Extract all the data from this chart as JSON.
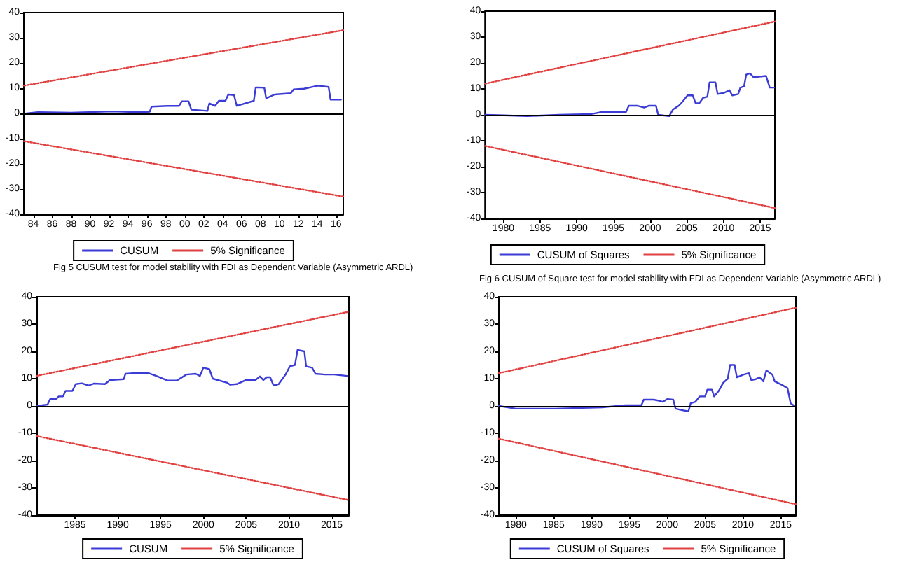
{
  "chart_data": [
    {
      "type": "line",
      "xlim": [
        1983,
        2016.75
      ],
      "ylim": [
        -40,
        40
      ],
      "xticks": [
        {
          "value": 1984,
          "label": "84"
        },
        {
          "value": 1986,
          "label": "86"
        },
        {
          "value": 1988,
          "label": "88"
        },
        {
          "value": 1990,
          "label": "90"
        },
        {
          "value": 1992,
          "label": "92"
        },
        {
          "value": 1994,
          "label": "94"
        },
        {
          "value": 1996,
          "label": "96"
        },
        {
          "value": 1998,
          "label": "98"
        },
        {
          "value": 2000,
          "label": "00"
        },
        {
          "value": 2002,
          "label": "02"
        },
        {
          "value": 2004,
          "label": "04"
        },
        {
          "value": 2006,
          "label": "06"
        },
        {
          "value": 2008,
          "label": "08"
        },
        {
          "value": 2010,
          "label": "10"
        },
        {
          "value": 2012,
          "label": "12"
        },
        {
          "value": 2014,
          "label": "14"
        },
        {
          "value": 2016,
          "label": "16"
        }
      ],
      "yticks": [
        -40,
        -30,
        -20,
        -10,
        0,
        10,
        20,
        30,
        40
      ],
      "grid": false,
      "legend": "bottom",
      "marker": "none",
      "ref_lines": [
        {
          "axis": "y",
          "value": 0,
          "color": "#000000"
        }
      ],
      "annotations": [
        "Fig 5 CUSUM test for model stability with FDI as Dependent Variable (Asymmetric ARDL)"
      ],
      "series": [
        {
          "name": "CUSUM",
          "color": "#3b3bd6",
          "line_style": "solid",
          "x": [
            1983.3,
            1984.5,
            1988,
            1992.4,
            1995.3,
            1996.3,
            1996.5,
            1998.2,
            1999.4,
            1999.7,
            2000.4,
            2000.7,
            2002.4,
            2002.6,
            2003.2,
            2003.6,
            2004.3,
            2004.6,
            2005.2,
            2005.5,
            2007.3,
            2007.5,
            2008.4,
            2008.6,
            2009.5,
            2011.2,
            2011.5,
            2012.6,
            2014.1,
            2015.2,
            2015.4,
            2016.5
          ],
          "values": [
            0,
            0.5,
            0.3,
            0.8,
            0.5,
            0.7,
            2.7,
            3,
            3,
            4.8,
            4.8,
            1.5,
            1,
            4,
            3,
            5,
            5,
            7.5,
            7.3,
            3,
            5,
            10.3,
            10.2,
            6,
            7.5,
            8,
            9.5,
            9.8,
            11,
            10.5,
            5.5,
            5.5
          ]
        },
        {
          "name": "5% Significance",
          "color": "#e04040",
          "line_style": "dotted",
          "x": [
            1983,
            2016.75
          ],
          "values": [
            11,
            33
          ]
        },
        {
          "color": "#e04040",
          "line_style": "dotted",
          "x": [
            1983,
            2016.75
          ],
          "values": [
            -11,
            -33
          ]
        }
      ]
    },
    {
      "type": "line",
      "xlim": [
        1977.5,
        2017
      ],
      "ylim": [
        -40,
        40
      ],
      "xticks": [
        1980,
        1985,
        1990,
        1995,
        2000,
        2005,
        2010,
        2015
      ],
      "yticks": [
        -40,
        -30,
        -20,
        -10,
        0,
        10,
        20,
        30,
        40
      ],
      "grid": false,
      "legend": "bottom",
      "marker": "none",
      "ref_lines": [
        {
          "axis": "y",
          "value": 0,
          "color": "#000000"
        }
      ],
      "annotations": [
        "Fig 6 CUSUM of Square test for model stability with  FDI as Dependent Variable (Asymmetric ARDL)"
      ],
      "series": [
        {
          "name": "CUSUM of Squares",
          "color": "#3b3bd6",
          "line_style": "solid",
          "x": [
            1977.5,
            1980.1,
            1983.3,
            1987.6,
            1992,
            1993.3,
            1995.8,
            1996.7,
            1997.1,
            1998.3,
            1999.2,
            1999.8,
            2000.8,
            2001.1,
            2002.6,
            2003.1,
            2003.9,
            2004.4,
            2005.1,
            2005.8,
            2006.2,
            2006.7,
            2007.2,
            2007.8,
            2008.1,
            2008.9,
            2009.2,
            2010.1,
            2010.8,
            2011.2,
            2012,
            2012.3,
            2012.8,
            2013.1,
            2013.6,
            2014.1,
            2015.8,
            2016.3,
            2016.9
          ],
          "values": [
            0,
            -0.2,
            -0.5,
            0,
            0.3,
            1,
            1,
            1,
            3.5,
            3.5,
            2.8,
            3.5,
            3.5,
            0,
            -0.5,
            2,
            3.5,
            5,
            7.5,
            7.5,
            4.5,
            4.5,
            6.5,
            7,
            12.5,
            12.5,
            8,
            8.5,
            9.5,
            7.5,
            8,
            10.5,
            11,
            15.5,
            16,
            14.5,
            15,
            10.5,
            10.5
          ]
        },
        {
          "name": "5% Significance",
          "color": "#e04040",
          "line_style": "dotted",
          "x": [
            1977.5,
            2017
          ],
          "values": [
            12,
            36
          ]
        },
        {
          "color": "#e04040",
          "line_style": "dotted",
          "x": [
            1977.5,
            2017
          ],
          "values": [
            -12,
            -36
          ]
        }
      ]
    },
    {
      "type": "line",
      "xlim": [
        1980.5,
        2017
      ],
      "ylim": [
        -40,
        40
      ],
      "xticks": [
        1985,
        1990,
        1995,
        2000,
        2005,
        2010,
        2015
      ],
      "yticks": [
        -40,
        -30,
        -20,
        -10,
        0,
        10,
        20,
        30,
        40
      ],
      "grid": false,
      "legend": "bottom",
      "marker": "none",
      "ref_lines": [
        {
          "axis": "y",
          "value": 0,
          "color": "#000000"
        }
      ],
      "series": [
        {
          "name": "CUSUM",
          "color": "#3b3bd6",
          "line_style": "solid",
          "x": [
            1980.6,
            1981.8,
            1982.1,
            1982.8,
            1983.1,
            1983.6,
            1983.9,
            1984.7,
            1985.1,
            1985.8,
            1986.6,
            1987.2,
            1988.5,
            1989.1,
            1990.7,
            1990.9,
            1991.8,
            1993.6,
            1994.5,
            1995.8,
            1996.9,
            1998,
            1999.1,
            1999.6,
            2000,
            2000.7,
            2001.1,
            2002.8,
            2003.1,
            2003.9,
            2005,
            2006.1,
            2006.6,
            2007,
            2007.4,
            2007.8,
            2008.2,
            2008.8,
            2009.6,
            2010.1,
            2010.7,
            2011,
            2011.8,
            2012,
            2012.7,
            2013.1,
            2014.2,
            2015.3,
            2016.8
          ],
          "values": [
            0,
            0.5,
            2.5,
            2.5,
            3.5,
            3.5,
            5.5,
            5.5,
            8,
            8.3,
            7.5,
            8.2,
            8,
            9.5,
            9.8,
            11.8,
            12,
            12,
            11,
            9.3,
            9.3,
            11.5,
            11.8,
            11,
            14,
            13.5,
            10,
            8.5,
            7.8,
            8,
            9.5,
            9.5,
            10.8,
            9.5,
            10.5,
            10.5,
            7.5,
            8,
            11.5,
            14.5,
            15,
            20.5,
            20,
            14.5,
            14,
            11.8,
            11.5,
            11.5,
            11
          ]
        },
        {
          "name": "5% Significance",
          "color": "#e04040",
          "line_style": "dotted",
          "x": [
            1980.5,
            2017
          ],
          "values": [
            11,
            34.5
          ]
        },
        {
          "color": "#e04040",
          "line_style": "dotted",
          "x": [
            1980.5,
            2017
          ],
          "values": [
            -11,
            -34.5
          ]
        }
      ]
    },
    {
      "type": "line",
      "xlim": [
        1977.75,
        2017
      ],
      "ylim": [
        -40,
        40
      ],
      "xticks": [
        1980,
        1985,
        1990,
        1995,
        2000,
        2005,
        2010,
        2015
      ],
      "yticks": [
        -40,
        -30,
        -20,
        -10,
        0,
        10,
        20,
        30,
        40
      ],
      "grid": false,
      "legend": "bottom",
      "marker": "none",
      "ref_lines": [
        {
          "axis": "y",
          "value": 0,
          "color": "#000000"
        }
      ],
      "series": [
        {
          "name": "CUSUM of Squares",
          "color": "#3b3bd6",
          "line_style": "solid",
          "x": [
            1977.75,
            1980,
            1985.2,
            1991.4,
            1994.5,
            1996.6,
            1996.9,
            1998.2,
            1998.8,
            1999.4,
            2000,
            2000.8,
            2001.1,
            2001.9,
            2002.8,
            2003.1,
            2003.7,
            2004.3,
            2005,
            2005.3,
            2005.9,
            2006.2,
            2006.8,
            2007.4,
            2008,
            2008.3,
            2008.9,
            2009.2,
            2010.1,
            2010.8,
            2011.1,
            2011.7,
            2012.2,
            2012.7,
            2013.1,
            2013.9,
            2014.2,
            2015.1,
            2015.9,
            2016.3,
            2016.8
          ],
          "values": [
            0,
            -1,
            -1,
            -0.5,
            0.3,
            0.3,
            2.3,
            2.3,
            2,
            1.5,
            2.5,
            2.3,
            -1,
            -1.5,
            -2,
            1,
            1.5,
            3.5,
            3.5,
            6,
            6,
            3.5,
            5.5,
            8.5,
            10,
            15,
            15,
            10.5,
            11.5,
            12,
            9.5,
            9.8,
            10.5,
            9,
            13,
            11.5,
            9,
            7.8,
            6.5,
            1,
            0
          ]
        },
        {
          "name": "5% Significance",
          "color": "#e04040",
          "line_style": "dotted",
          "x": [
            1977.75,
            2017
          ],
          "values": [
            12,
            36
          ]
        },
        {
          "color": "#e04040",
          "line_style": "dotted",
          "x": [
            1977.75,
            2017
          ],
          "values": [
            -12,
            -36
          ]
        }
      ]
    }
  ]
}
